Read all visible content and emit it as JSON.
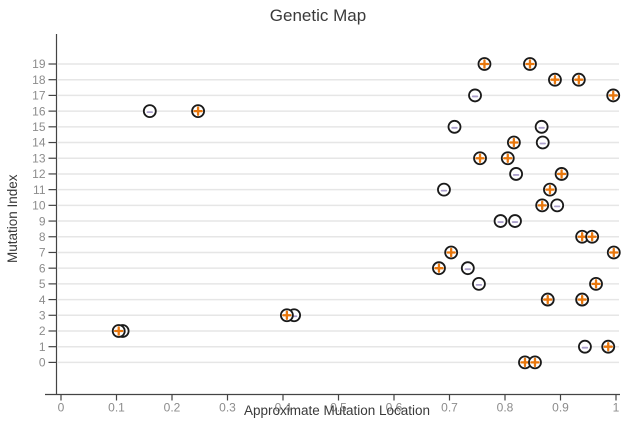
{
  "title": "Genetic Map",
  "axes": {
    "xlabel": "Approximate Mutation Location",
    "ylabel": "Mutation Index"
  },
  "colors": {
    "plus": "#E8770D",
    "minus": "#ACA0CC",
    "grid": "#E6E6E6",
    "axis": "#444444",
    "tick_label": "#8C8C8C",
    "text": "#3A3A3A",
    "marker_fill": "#FFFFFF",
    "marker_stroke": "#1A1A1A"
  },
  "chart_data": {
    "type": "scatter",
    "title": "Genetic Map",
    "xlabel": "Approximate Mutation Location",
    "ylabel": "Mutation Index",
    "xlim": [
      0,
      1
    ],
    "ylim": [
      0,
      19
    ],
    "grid": "horizontal-major",
    "legend": "none",
    "x_ticks": [
      0,
      0.1,
      0.2,
      0.3,
      0.4,
      0.5,
      0.6,
      0.7,
      0.8,
      0.9,
      1
    ],
    "x_tick_labels": [
      "0",
      "0.1",
      "0.2",
      "0.3",
      "0.4",
      "0.5",
      "0.6",
      "0.7",
      "0.8",
      "0.9",
      "1"
    ],
    "y_ticks": [
      0,
      1,
      2,
      3,
      4,
      5,
      6,
      7,
      8,
      9,
      10,
      11,
      12,
      13,
      14,
      15,
      16,
      17,
      18,
      19
    ],
    "series": [
      {
        "name": "minus-marker",
        "marker": "circle-minus",
        "points": [
          [
            0.944,
            1
          ],
          [
            0.111,
            2
          ],
          [
            0.42,
            3
          ],
          [
            0.753,
            5
          ],
          [
            0.733,
            6
          ],
          [
            0.792,
            9
          ],
          [
            0.818,
            9
          ],
          [
            0.894,
            10
          ],
          [
            0.69,
            11
          ],
          [
            0.82,
            12
          ],
          [
            0.868,
            14
          ],
          [
            0.709,
            15
          ],
          [
            0.866,
            15
          ],
          [
            0.16,
            16
          ],
          [
            0.746,
            17
          ]
        ]
      },
      {
        "name": "plus-marker",
        "marker": "circle-plus",
        "points": [
          [
            0.836,
            0
          ],
          [
            0.854,
            0
          ],
          [
            0.986,
            1
          ],
          [
            0.104,
            2
          ],
          [
            0.407,
            3
          ],
          [
            0.877,
            4
          ],
          [
            0.939,
            4
          ],
          [
            0.964,
            5
          ],
          [
            0.681,
            6
          ],
          [
            0.703,
            7
          ],
          [
            0.996,
            7
          ],
          [
            0.939,
            8
          ],
          [
            0.957,
            8
          ],
          [
            0.867,
            10
          ],
          [
            0.881,
            11
          ],
          [
            0.902,
            12
          ],
          [
            0.755,
            13
          ],
          [
            0.805,
            13
          ],
          [
            0.816,
            14
          ],
          [
            0.247,
            16
          ],
          [
            0.995,
            17
          ],
          [
            0.89,
            18
          ],
          [
            0.933,
            18
          ],
          [
            0.763,
            19
          ],
          [
            0.845,
            19
          ]
        ]
      }
    ]
  }
}
